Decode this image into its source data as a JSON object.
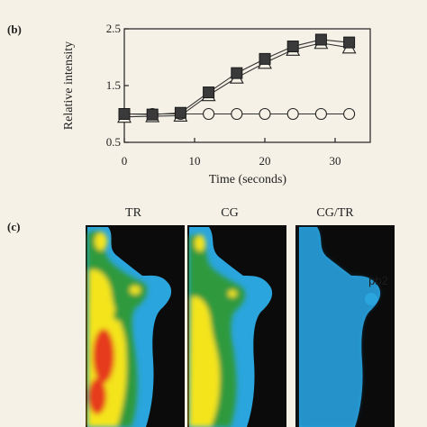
{
  "panel_b": {
    "label": "(b)",
    "chart_data": {
      "type": "line",
      "xlabel": "Time (seconds)",
      "ylabel": "Relative intensity",
      "xlim": [
        0,
        35
      ],
      "ylim": [
        0.5,
        2.5
      ],
      "xticks": [
        "0",
        "10",
        "20",
        "30"
      ],
      "yticks": [
        "0.5",
        "1.5",
        "2.5"
      ],
      "grid": false,
      "series": [
        {
          "marker": "filled-square",
          "color": "#333333",
          "x": [
            0,
            4,
            8,
            12,
            16,
            20,
            24,
            28,
            32
          ],
          "y": [
            1.0,
            0.99,
            1.02,
            1.38,
            1.72,
            1.97,
            2.19,
            2.31,
            2.26
          ]
        },
        {
          "marker": "open-triangle",
          "color": "#333333",
          "x": [
            0,
            4,
            8,
            12,
            16,
            20,
            24,
            28,
            32
          ],
          "y": [
            0.95,
            0.96,
            0.97,
            1.33,
            1.64,
            1.9,
            2.13,
            2.25,
            2.17
          ]
        },
        {
          "marker": "open-circle",
          "color": "#333333",
          "x": [
            0,
            4,
            8,
            12,
            16,
            20,
            24,
            28,
            32
          ],
          "y": [
            1.0,
            1.0,
            1.0,
            1.0,
            1.0,
            1.0,
            1.0,
            1.0,
            1.0
          ]
        }
      ]
    }
  },
  "panel_c": {
    "label": "(c)",
    "images": [
      {
        "title": "TR",
        "kind": "fluorescence-heatmap"
      },
      {
        "title": "CG",
        "kind": "fluorescence-heatmap"
      },
      {
        "title": "CG/TR",
        "kind": "ratio-image",
        "annotation": "pb2"
      }
    ],
    "colors": {
      "background": "#0b0b0b",
      "blue": "#2aa5dd",
      "green": "#2e9a3c",
      "yellow": "#f4e41c",
      "red": "#e63a1c"
    }
  }
}
